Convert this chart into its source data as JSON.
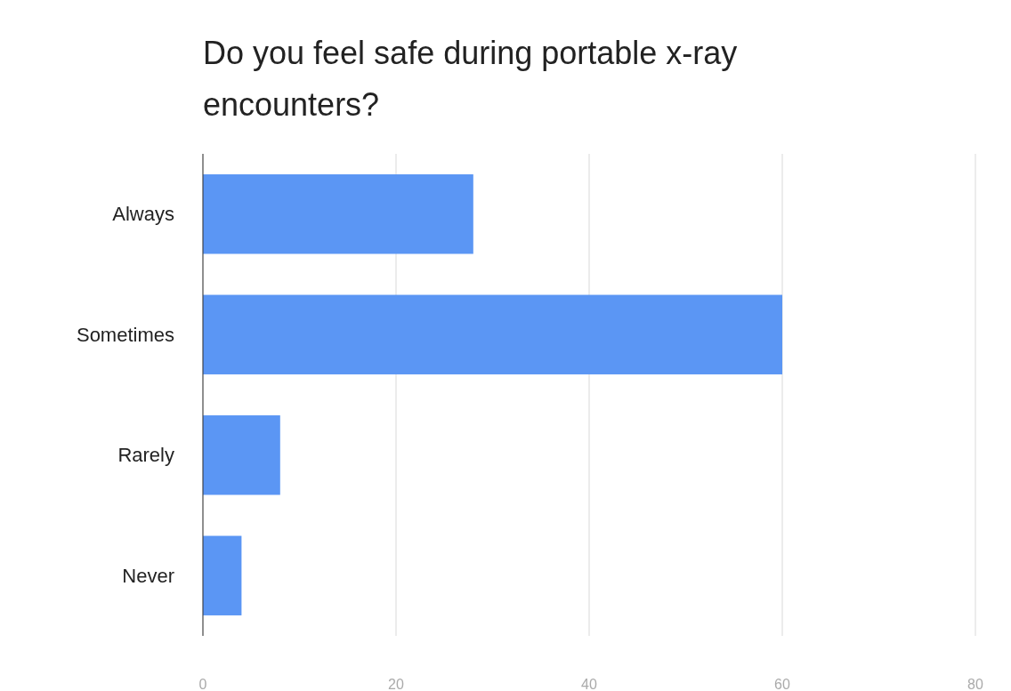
{
  "chart_data": {
    "type": "bar",
    "title": "Do you feel safe during portable x-ray encounters?",
    "orientation": "horizontal",
    "categories": [
      "Always",
      "Sometimes",
      "Rarely",
      "Never"
    ],
    "values": [
      28,
      60,
      8,
      4
    ],
    "color": "#5b96f4",
    "xlim": [
      0,
      80
    ],
    "xticks": [
      0,
      20,
      40,
      60,
      80
    ],
    "grid": "x"
  }
}
